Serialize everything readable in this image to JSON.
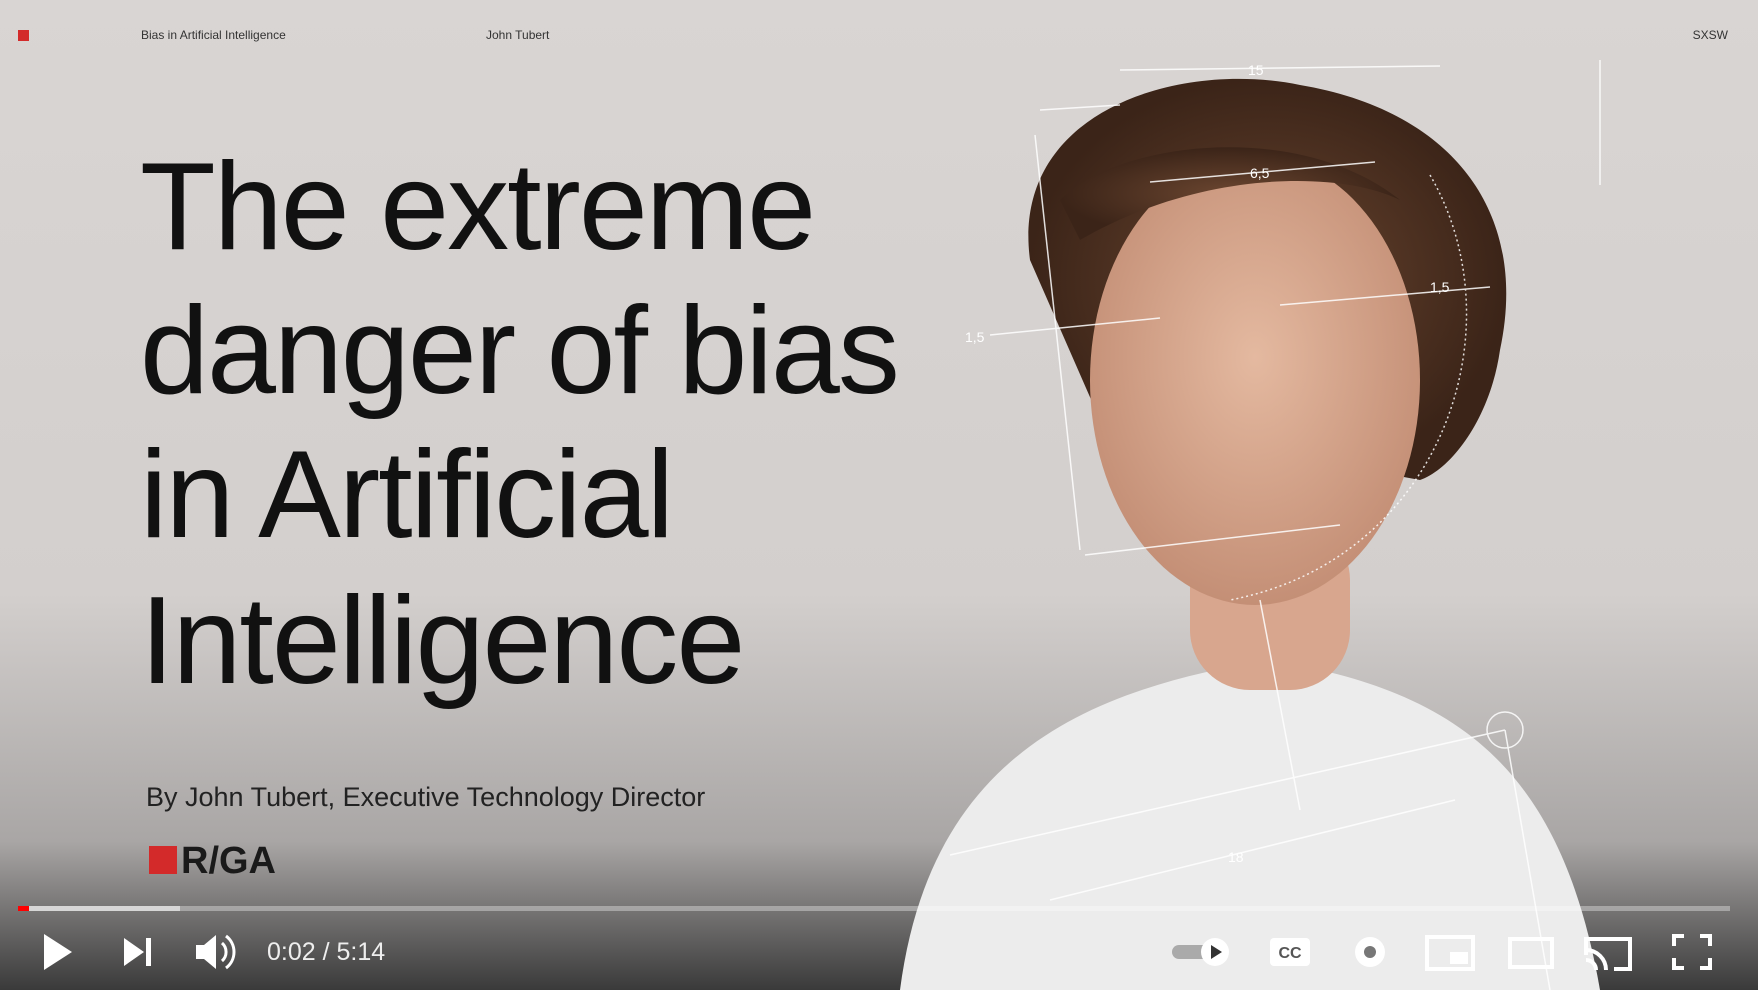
{
  "slide": {
    "header": {
      "topic": "Bias in Artificial Intelligence",
      "author": "John Tubert",
      "event": "SXSW"
    },
    "title_lines": [
      "The extreme",
      "danger of bias",
      "in Artificial",
      "Intelligence"
    ],
    "byline": "By John Tubert, Executive Technology Director",
    "logo": "R/GA",
    "measurements": [
      "15",
      "6,5",
      "1,5",
      "1,5",
      "18"
    ]
  },
  "player": {
    "time": "0:02 / 5:14"
  }
}
